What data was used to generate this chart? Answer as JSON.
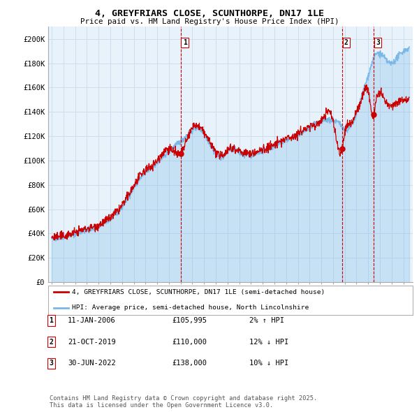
{
  "title": "4, GREYFRIARS CLOSE, SCUNTHORPE, DN17 1LE",
  "subtitle": "Price paid vs. HM Land Registry's House Price Index (HPI)",
  "ylim": [
    0,
    210000
  ],
  "yticks": [
    0,
    20000,
    40000,
    60000,
    80000,
    100000,
    120000,
    140000,
    160000,
    180000,
    200000
  ],
  "ytick_labels": [
    "£0",
    "£20K",
    "£40K",
    "£60K",
    "£80K",
    "£100K",
    "£120K",
    "£140K",
    "£160K",
    "£180K",
    "£200K"
  ],
  "hpi_color": "#7ab8e8",
  "hpi_fill_color": "#d0e8f8",
  "price_color": "#cc0000",
  "vline_color": "#cc0000",
  "grid_color": "#ccddee",
  "plot_bg_color": "#e8f2fa",
  "background_color": "#ffffff",
  "legend_label_price": "4, GREYFRIARS CLOSE, SCUNTHORPE, DN17 1LE (semi-detached house)",
  "legend_label_hpi": "HPI: Average price, semi-detached house, North Lincolnshire",
  "transactions": [
    {
      "label": "1",
      "date_num": 2006.04,
      "price": 105995,
      "note": "11-JAN-2006",
      "display": "£105,995",
      "hpi_note": "2% ↑ HPI"
    },
    {
      "label": "2",
      "date_num": 2019.81,
      "price": 110000,
      "note": "21-OCT-2019",
      "display": "£110,000",
      "hpi_note": "12% ↓ HPI"
    },
    {
      "label": "3",
      "date_num": 2022.49,
      "price": 138000,
      "note": "30-JUN-2022",
      "display": "£138,000",
      "hpi_note": "10% ↓ HPI"
    }
  ],
  "footer": "Contains HM Land Registry data © Crown copyright and database right 2025.\nThis data is licensed under the Open Government Licence v3.0.",
  "transaction_rows": [
    [
      "1",
      "11-JAN-2006",
      "£105,995",
      "2% ↑ HPI"
    ],
    [
      "2",
      "21-OCT-2019",
      "£110,000",
      "12% ↓ HPI"
    ],
    [
      "3",
      "30-JUN-2022",
      "£138,000",
      "10% ↓ HPI"
    ]
  ]
}
